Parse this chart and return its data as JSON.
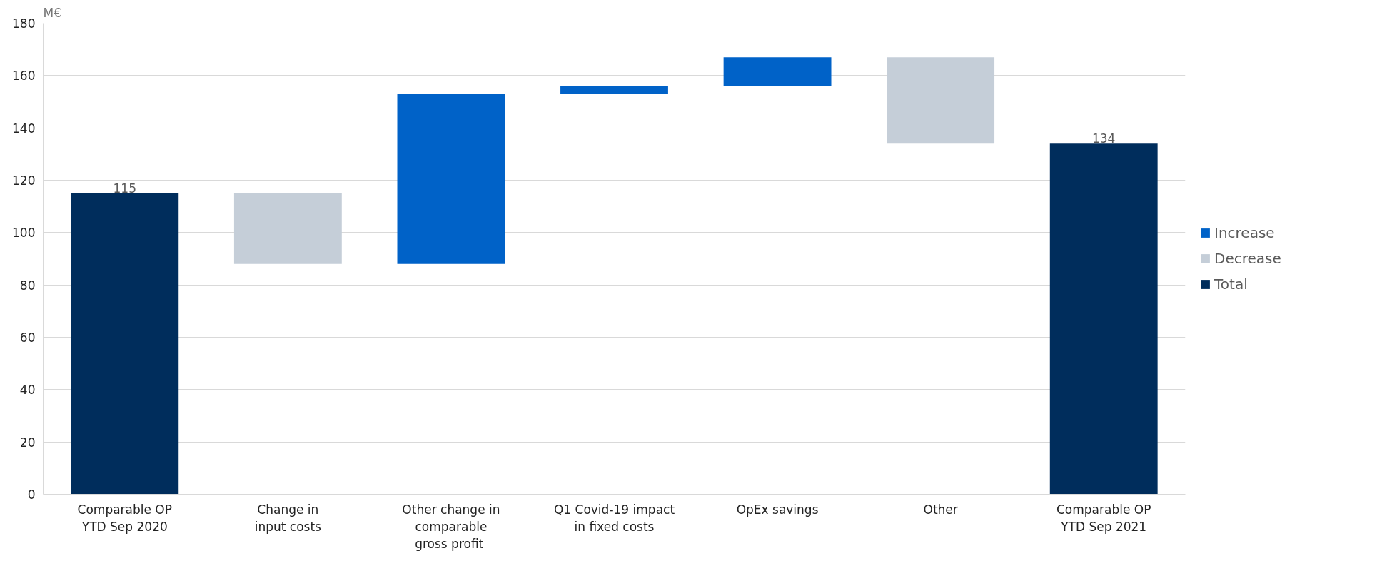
{
  "chart_data": {
    "type": "bar",
    "ylabel": "M€",
    "categories": [
      "Comparable OP\nYTD Sep 2020",
      "Change in\ninput costs",
      "Other change in\ncomparable\n gross profit",
      "Q1 Covid-19 impact\nin fixed costs",
      "OpEx savings",
      "Other",
      "Comparable OP\nYTD Sep 2021"
    ],
    "series": [
      {
        "name": "Increase",
        "color": "#0062c8",
        "values": [
          null,
          null,
          65,
          3,
          11,
          null,
          null
        ],
        "base": [
          null,
          null,
          88,
          153,
          156,
          null,
          null
        ]
      },
      {
        "name": "Decrease",
        "color": "#c5ced8",
        "values": [
          null,
          27,
          null,
          null,
          null,
          33,
          null
        ],
        "base": [
          null,
          88,
          null,
          null,
          null,
          134,
          null
        ]
      },
      {
        "name": "Total",
        "color": "#002d5c",
        "values": [
          115,
          null,
          null,
          null,
          null,
          null,
          134
        ],
        "value_labels": [
          "115",
          null,
          null,
          null,
          null,
          null,
          "134"
        ]
      }
    ],
    "ylim": [
      0,
      180
    ],
    "yticks": [
      0,
      20,
      40,
      60,
      80,
      100,
      120,
      140,
      160,
      180
    ],
    "grid": "y",
    "legend": "right"
  }
}
